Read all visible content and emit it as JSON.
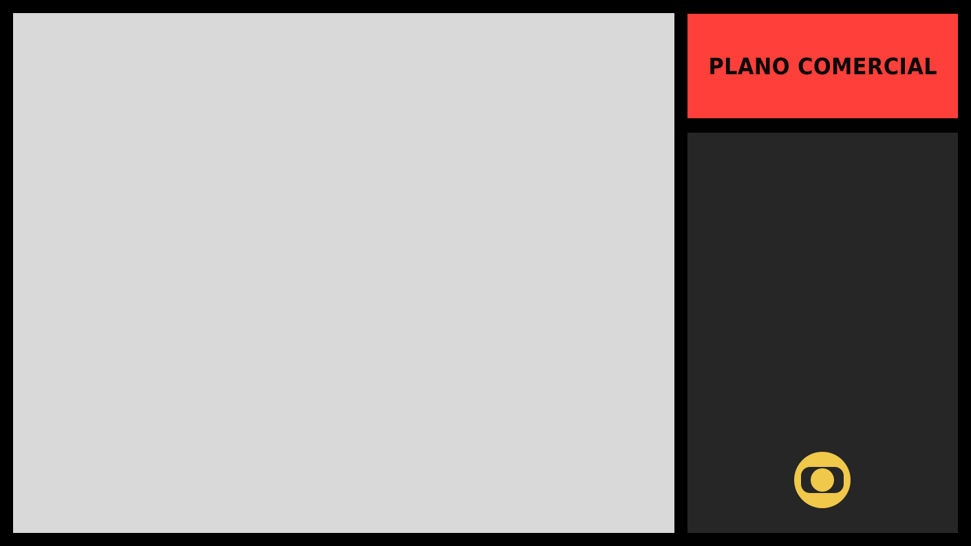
{
  "main_panel": {
    "background": "#d9d9d9"
  },
  "title_panel": {
    "title": "PLANO COMERCIAL",
    "background": "#ff3f3a",
    "text_color": "#0a0a0a"
  },
  "side_panel": {
    "background": "#262626",
    "logo": {
      "icon": "globo-logo-icon",
      "color": "#f0c84a"
    }
  },
  "frame": {
    "background": "#000000"
  }
}
